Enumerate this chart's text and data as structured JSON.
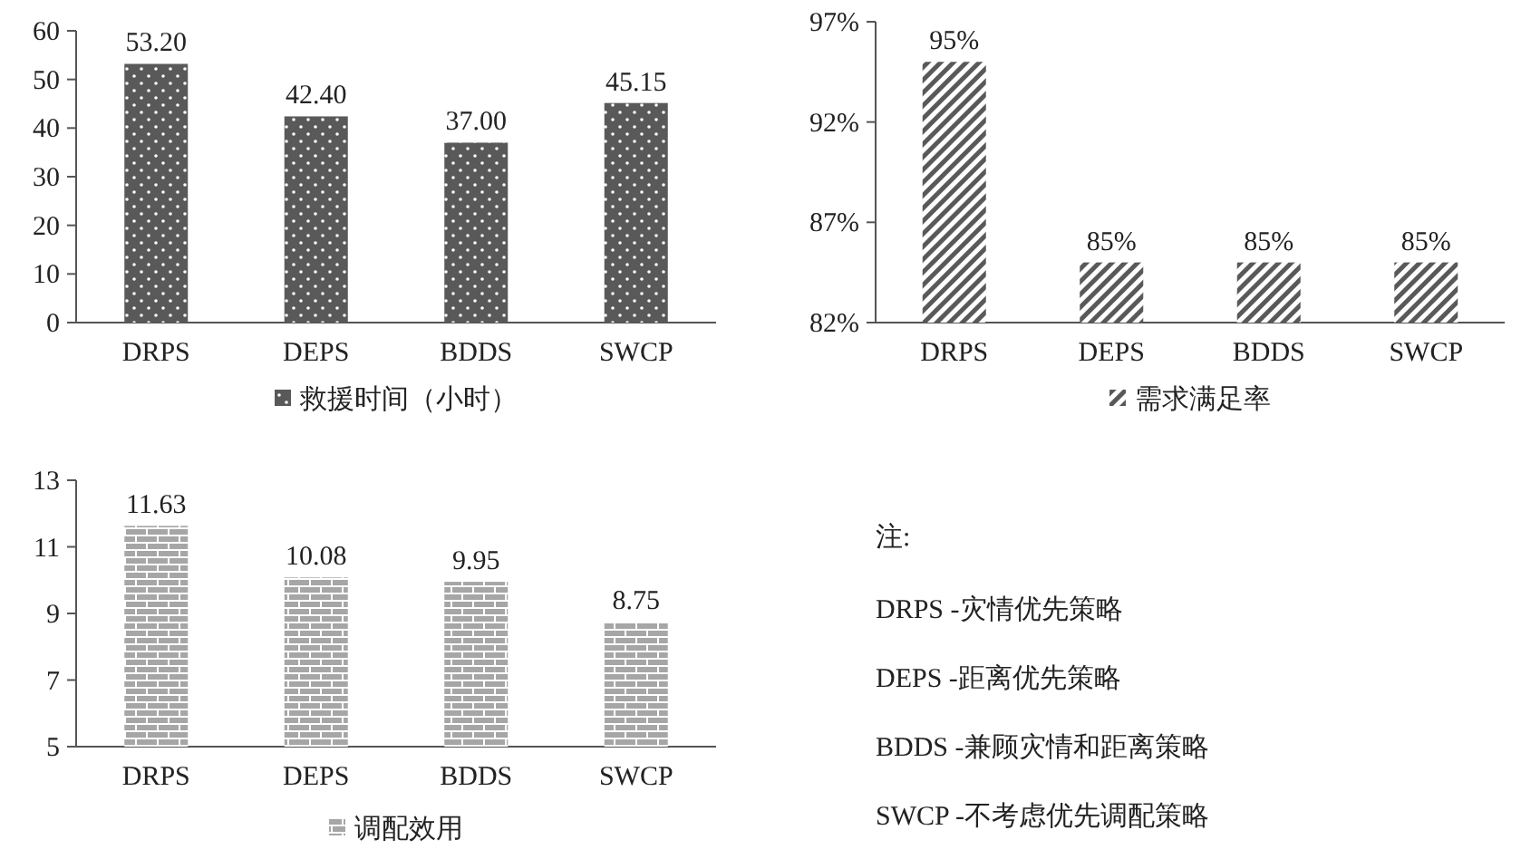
{
  "chart_data": [
    {
      "type": "bar",
      "categories": [
        "DRPS",
        "DEPS",
        "BDDS",
        "SWCP"
      ],
      "ylim": [
        0,
        60
      ],
      "yticks": [
        0,
        10,
        20,
        30,
        40,
        50,
        60
      ],
      "legend": "bottom",
      "series": [
        {
          "name": "救援时间（小时）",
          "color": "#595959",
          "values": [
            53.2,
            42.4,
            37.0,
            45.15
          ],
          "value_labels": [
            "53.20",
            "42.40",
            "37.00",
            "45.15"
          ]
        }
      ]
    },
    {
      "type": "bar",
      "categories": [
        "DRPS",
        "DEPS",
        "BDDS",
        "SWCP"
      ],
      "ylim": [
        82,
        97
      ],
      "yticks": [
        {
          "value": 82,
          "label": "82%"
        },
        {
          "value": 87,
          "label": "87%"
        },
        {
          "value": 92,
          "label": "92%"
        },
        {
          "value": 97,
          "label": "97%"
        }
      ],
      "legend": "bottom",
      "series": [
        {
          "name": "需求满足率",
          "color": "#595959",
          "values": [
            95,
            85,
            85,
            85
          ],
          "value_labels": [
            "95%",
            "85%",
            "85%",
            "85%"
          ]
        }
      ]
    },
    {
      "type": "bar",
      "categories": [
        "DRPS",
        "DEPS",
        "BDDS",
        "SWCP"
      ],
      "ylim": [
        5,
        13
      ],
      "yticks": [
        5,
        7,
        9,
        11,
        13
      ],
      "legend": "bottom",
      "series": [
        {
          "name": "调配效用",
          "color": "#a6a6a6",
          "values": [
            11.63,
            10.08,
            9.95,
            8.75
          ],
          "value_labels": [
            "11.63",
            "10.08",
            "9.95",
            "8.75"
          ]
        }
      ]
    },
    {
      "type": "other",
      "title": "注:",
      "annotations": [
        "DRPS -灾情优先策略",
        "DEPS -距离优先策略",
        "BDDS -兼顾灾情和距离策略",
        "SWCP -不考虑优先调配策略"
      ]
    }
  ]
}
